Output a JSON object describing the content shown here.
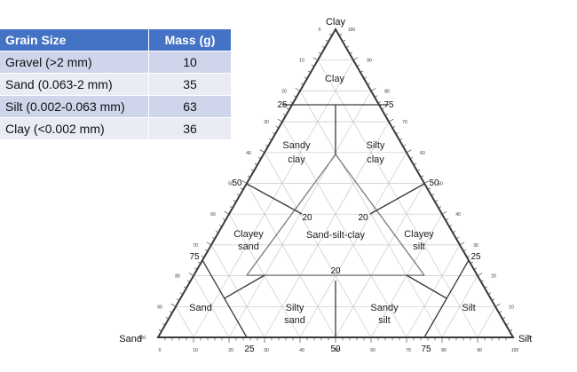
{
  "table": {
    "headers": [
      "Grain Size",
      "Mass (g)"
    ],
    "rows": [
      {
        "label": "Gravel (>2 mm)",
        "mass": "10"
      },
      {
        "label": "Sand (0.063-2 mm)",
        "mass": "35"
      },
      {
        "label": "Silt (0.002-0.063 mm)",
        "mass": "63"
      },
      {
        "label": "Clay (<0.002 mm)",
        "mass": "36"
      }
    ]
  },
  "diagram": {
    "corners": {
      "top": "Clay",
      "left": "Sand",
      "right": "Silt"
    },
    "regions": {
      "clay": "Clay",
      "sandy_clay": [
        "Sandy",
        "clay"
      ],
      "silty_clay": [
        "Silty",
        "clay"
      ],
      "clayey_sand": [
        "Clayey",
        "sand"
      ],
      "sand_silt_clay": "Sand-silt-clay",
      "clayey_silt": [
        "Clayey",
        "silt"
      ],
      "sand": "Sand",
      "silty_sand": [
        "Silty",
        "sand"
      ],
      "sandy_silt": [
        "Sandy",
        "silt"
      ],
      "silt": "Silt"
    },
    "major_ticks": {
      "v25": "25",
      "v75": "75",
      "v50": "50",
      "v20": "20"
    },
    "minor_ticks": [
      "0",
      "10",
      "20",
      "30",
      "40",
      "50",
      "60",
      "70",
      "80",
      "90",
      "100"
    ]
  },
  "colors": {
    "header_bg": "#4472c4",
    "row_dark": "#cfd5ea",
    "row_light": "#e9ebf5",
    "line": "#3a3a3a",
    "grid": "#c8c8c8"
  }
}
